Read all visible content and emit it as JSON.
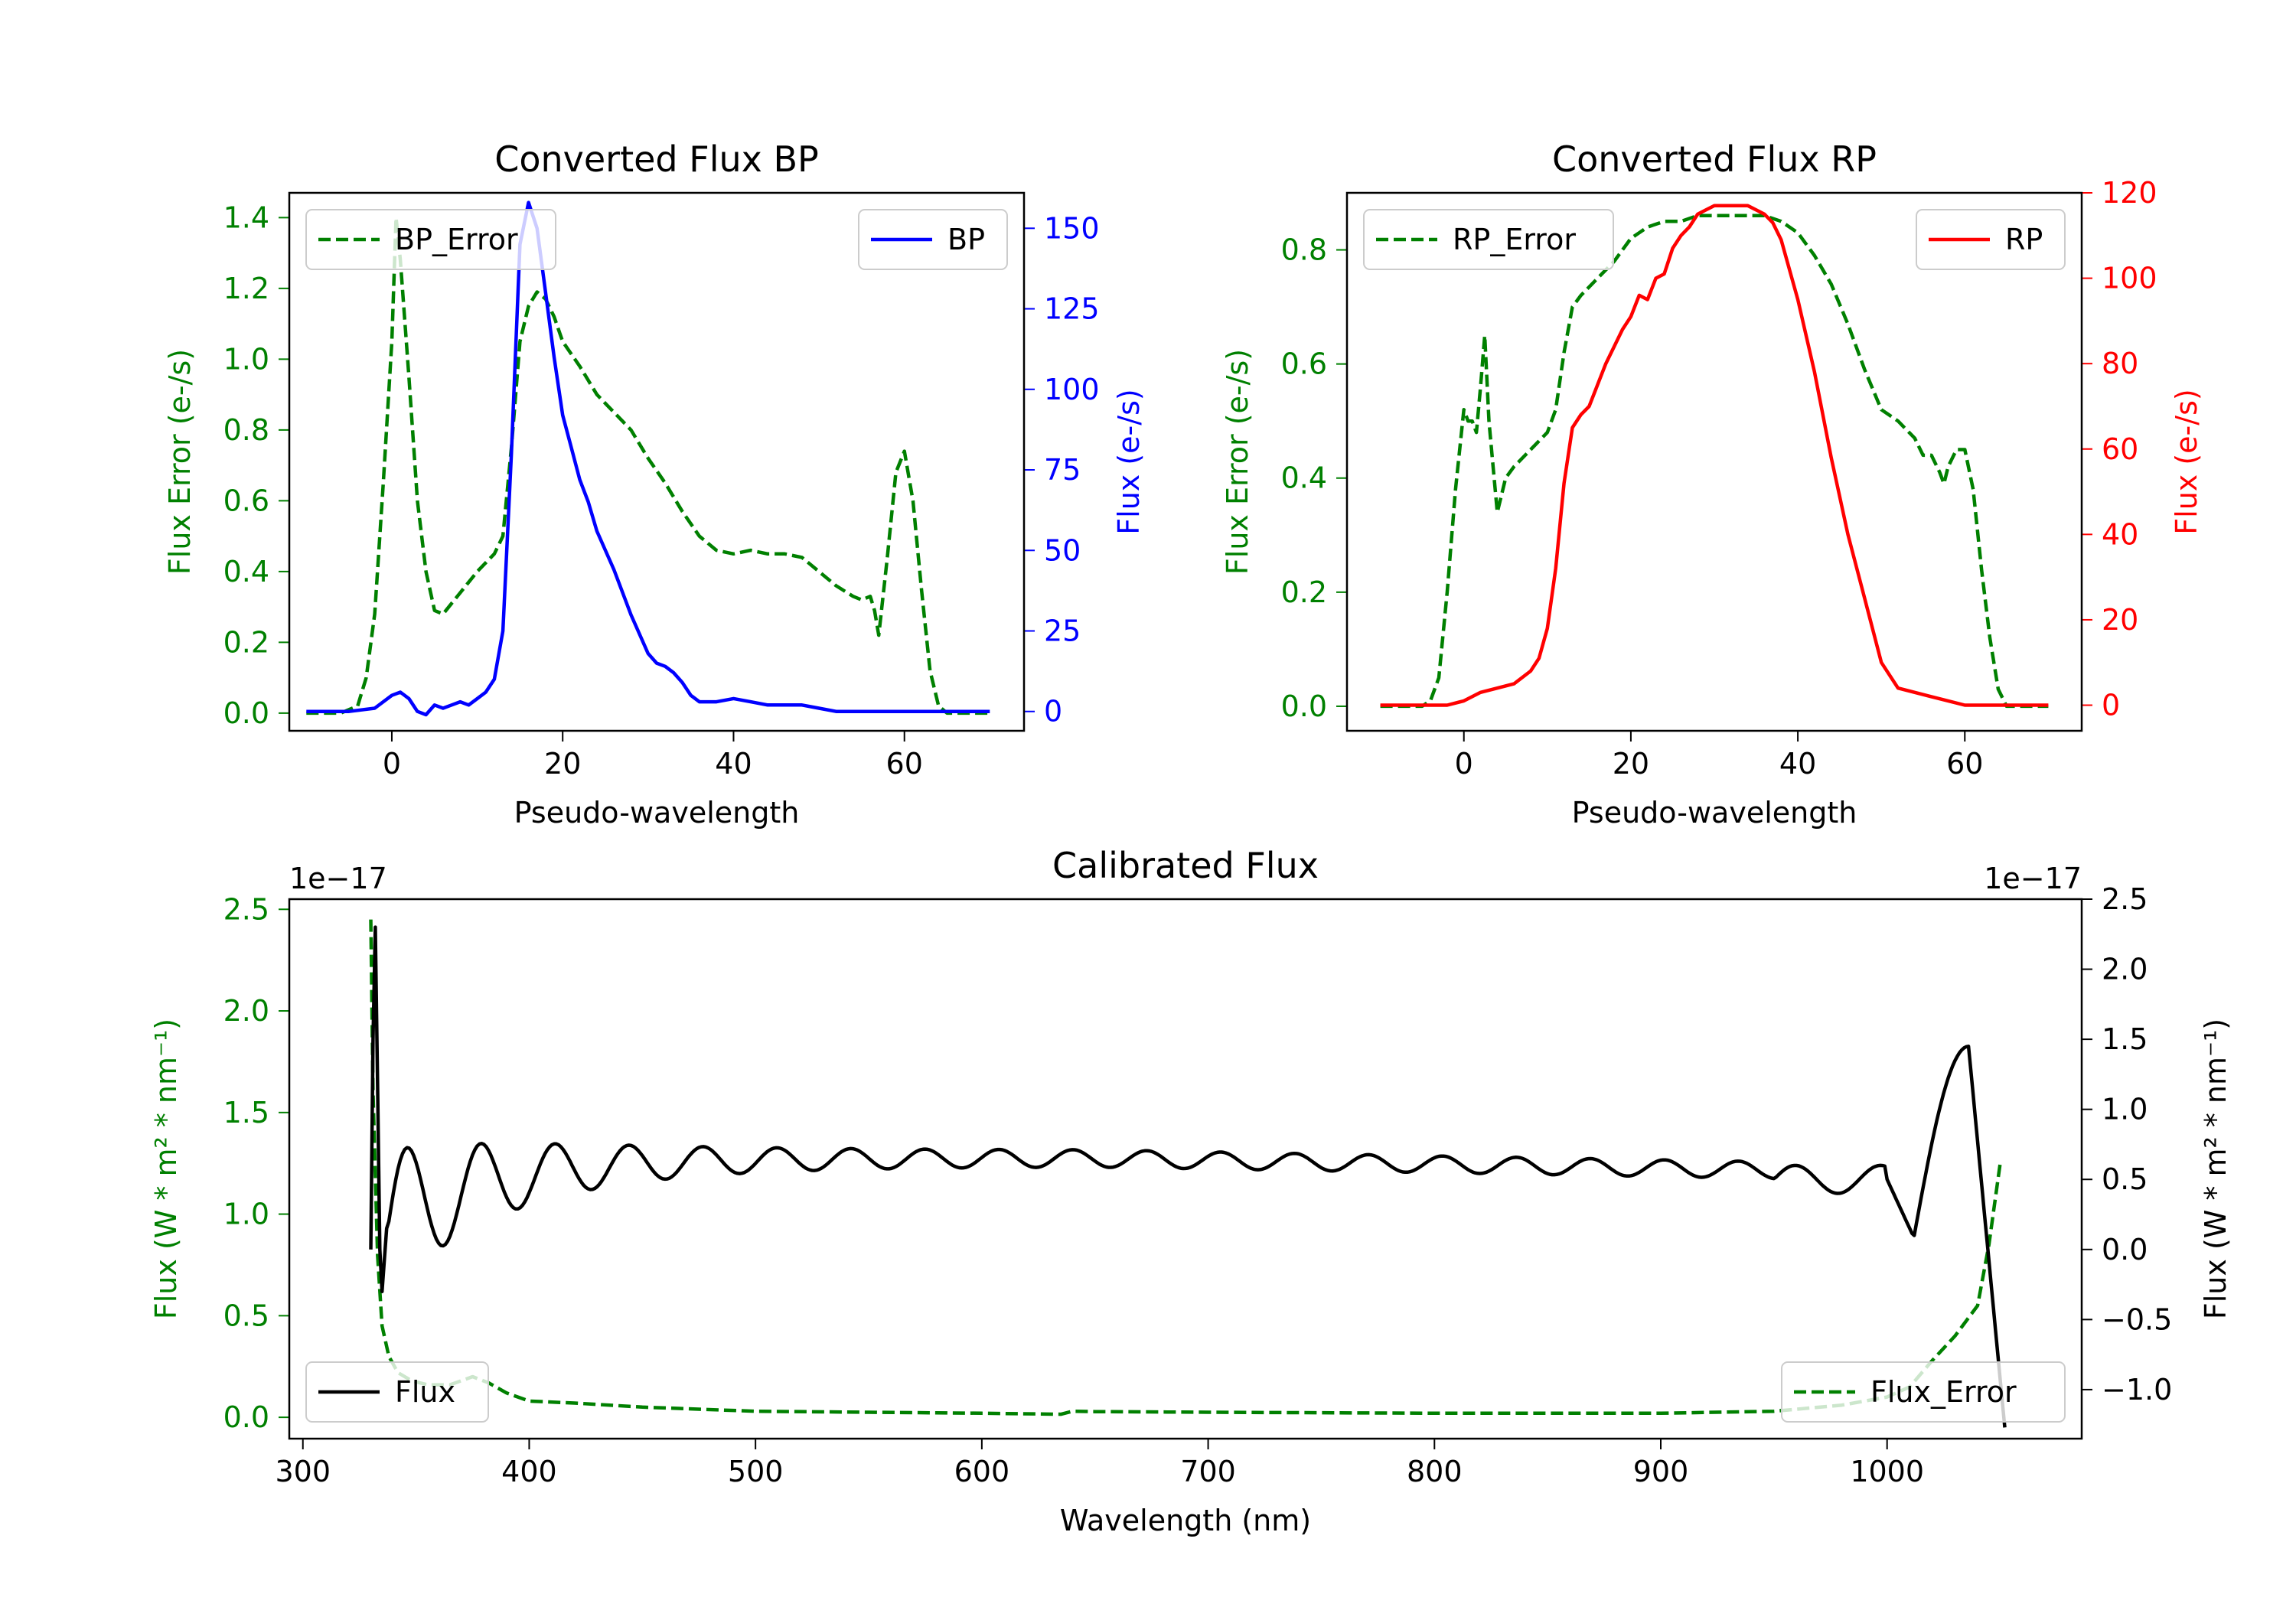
{
  "chart_data": [
    {
      "id": "bp",
      "type": "line",
      "title": "Converted Flux BP",
      "xlabel": "Pseudo-wavelength",
      "ylabel_left": "Flux Error (e-/s)",
      "ylabel_right": "Flux (e-/s)",
      "xlim": [
        -12,
        74
      ],
      "ylim_left": [
        -0.05,
        1.47
      ],
      "ylim_right": [
        -6,
        161
      ],
      "xticks": [
        0,
        20,
        40,
        60
      ],
      "yticks_left": [
        0.0,
        0.2,
        0.4,
        0.6,
        0.8,
        1.0,
        1.2,
        1.4
      ],
      "yticks_right": [
        0,
        25,
        50,
        75,
        100,
        125,
        150
      ],
      "ytick_labels_left": [
        "0.0",
        "0.2",
        "0.4",
        "0.6",
        "0.8",
        "1.0",
        "1.2",
        "1.4"
      ],
      "ytick_labels_right": [
        "0",
        "25",
        "50",
        "75",
        "100",
        "125",
        "150"
      ],
      "left_color": "#008000",
      "right_color": "#0000ff",
      "legend_left": {
        "label": "BP_Error",
        "placement": "upper-left"
      },
      "legend_right": {
        "label": "BP",
        "placement": "upper-right"
      },
      "series": [
        {
          "name": "BP_Error",
          "axis": "left",
          "color": "#008000",
          "style": "dashed",
          "x": [
            -10,
            -6,
            -4,
            -3,
            -2,
            -1,
            0,
            0.5,
            1,
            2,
            3,
            4,
            5,
            6,
            8,
            10,
            12,
            13,
            14,
            15,
            16,
            17,
            18,
            19,
            20,
            22,
            24,
            26,
            28,
            30,
            32,
            34,
            36,
            38,
            40,
            42,
            44,
            46,
            48,
            50,
            52,
            54,
            55,
            56,
            56.5,
            57,
            58,
            59,
            60,
            61,
            62,
            63,
            64,
            65,
            66,
            68,
            70
          ],
          "y": [
            0.0,
            0.0,
            0.02,
            0.1,
            0.28,
            0.65,
            1.05,
            1.4,
            1.28,
            0.95,
            0.6,
            0.4,
            0.29,
            0.28,
            0.34,
            0.4,
            0.45,
            0.5,
            0.75,
            1.05,
            1.15,
            1.19,
            1.17,
            1.12,
            1.05,
            0.98,
            0.9,
            0.85,
            0.8,
            0.72,
            0.65,
            0.57,
            0.5,
            0.46,
            0.45,
            0.46,
            0.45,
            0.45,
            0.44,
            0.4,
            0.36,
            0.33,
            0.32,
            0.33,
            0.29,
            0.22,
            0.44,
            0.68,
            0.74,
            0.6,
            0.35,
            0.12,
            0.02,
            0.0,
            0.0,
            0.0,
            0.0
          ]
        },
        {
          "name": "BP",
          "axis": "right",
          "color": "#0000ff",
          "style": "solid",
          "x": [
            -10,
            -5,
            -2,
            0,
            1,
            2,
            3,
            4,
            5,
            6,
            7,
            8,
            9,
            10,
            11,
            12,
            13,
            14,
            15,
            16,
            17,
            18,
            19,
            20,
            21,
            22,
            23,
            24,
            26,
            28,
            30,
            31,
            32,
            33,
            34,
            35,
            36,
            38,
            40,
            42,
            44,
            46,
            48,
            50,
            52,
            54,
            56,
            58,
            60,
            62,
            64,
            66,
            68,
            70
          ],
          "y": [
            0,
            0,
            1,
            5,
            6,
            4,
            0,
            -1,
            2,
            1,
            2,
            3,
            2,
            4,
            6,
            10,
            25,
            80,
            145,
            158,
            150,
            130,
            110,
            92,
            82,
            72,
            65,
            56,
            44,
            30,
            18,
            15,
            14,
            12,
            9,
            5,
            3,
            3,
            4,
            3,
            2,
            2,
            2,
            1,
            0,
            0,
            0,
            0,
            0,
            0,
            0,
            0,
            0,
            0
          ]
        }
      ]
    },
    {
      "id": "rp",
      "type": "line",
      "title": "Converted Flux RP",
      "xlabel": "Pseudo-wavelength",
      "ylabel_left": "Flux Error (e-/s)",
      "ylabel_right": "Flux (e-/s)",
      "xlim": [
        -14,
        74
      ],
      "ylim_left": [
        -0.043,
        0.9
      ],
      "ylim_right": [
        -6,
        120
      ],
      "xticks": [
        0,
        20,
        40,
        60
      ],
      "yticks_left": [
        0.0,
        0.2,
        0.4,
        0.6,
        0.8
      ],
      "yticks_right": [
        0,
        20,
        40,
        60,
        80,
        100,
        120
      ],
      "ytick_labels_left": [
        "0.0",
        "0.2",
        "0.4",
        "0.6",
        "0.8"
      ],
      "ytick_labels_right": [
        "0",
        "20",
        "40",
        "60",
        "80",
        "100",
        "120"
      ],
      "left_color": "#008000",
      "right_color": "#ff0000",
      "legend_left": {
        "label": "RP_Error",
        "placement": "upper-left"
      },
      "legend_right": {
        "label": "RP",
        "placement": "upper-right"
      },
      "series": [
        {
          "name": "RP_Error",
          "axis": "left",
          "color": "#008000",
          "style": "dashed",
          "x": [
            -10,
            -5,
            -4,
            -3,
            -2,
            -1,
            0,
            0.5,
            1,
            1.5,
            2,
            2.5,
            3,
            3.5,
            4,
            5,
            6,
            8,
            10,
            11,
            12,
            13,
            14,
            16,
            18,
            19,
            20,
            21,
            22,
            24,
            26,
            28,
            30,
            32,
            34,
            36,
            38,
            40,
            42,
            44,
            46,
            48,
            50,
            52,
            54,
            55,
            56,
            57,
            57.5,
            58,
            59,
            60,
            61,
            62,
            63,
            64,
            65,
            68,
            70
          ],
          "y": [
            0.0,
            0.0,
            0.01,
            0.05,
            0.2,
            0.38,
            0.52,
            0.5,
            0.5,
            0.48,
            0.56,
            0.65,
            0.5,
            0.42,
            0.34,
            0.4,
            0.42,
            0.45,
            0.48,
            0.52,
            0.62,
            0.7,
            0.72,
            0.75,
            0.78,
            0.8,
            0.82,
            0.83,
            0.84,
            0.85,
            0.85,
            0.86,
            0.86,
            0.86,
            0.86,
            0.86,
            0.85,
            0.83,
            0.79,
            0.74,
            0.67,
            0.59,
            0.52,
            0.5,
            0.47,
            0.44,
            0.44,
            0.41,
            0.39,
            0.42,
            0.45,
            0.45,
            0.38,
            0.24,
            0.12,
            0.03,
            0.0,
            0.0,
            0.0
          ]
        },
        {
          "name": "RP",
          "axis": "right",
          "color": "#ff0000",
          "style": "solid",
          "x": [
            -10,
            -5,
            -2,
            0,
            2,
            4,
            6,
            8,
            9,
            10,
            11,
            12,
            13,
            14,
            15,
            16,
            17,
            18,
            19,
            20,
            21,
            22,
            23,
            24,
            25,
            26,
            27,
            28,
            29,
            30,
            31,
            32,
            33,
            34,
            35,
            36,
            37,
            38,
            40,
            42,
            44,
            46,
            48,
            50,
            52,
            54,
            56,
            60,
            62,
            64,
            66,
            68,
            70
          ],
          "y": [
            0,
            0,
            0,
            1,
            3,
            4,
            5,
            8,
            11,
            18,
            32,
            52,
            65,
            68,
            70,
            75,
            80,
            84,
            88,
            91,
            96,
            95,
            100,
            101,
            107,
            110,
            112,
            115,
            116,
            117,
            117,
            117,
            117,
            117,
            116,
            115,
            113,
            109,
            95,
            78,
            58,
            40,
            25,
            10,
            4,
            3,
            2,
            0,
            0,
            0,
            0,
            0,
            0
          ]
        }
      ]
    },
    {
      "id": "calibrated",
      "type": "line",
      "title": "Calibrated Flux",
      "xlabel": "Wavelength (nm)",
      "ylabel_left": "Flux (W * m² * nm⁻¹)",
      "ylabel_right": "Flux (W * m² * nm⁻¹)",
      "offset_left": "1e−17",
      "offset_right": "1e−17",
      "xlim": [
        294,
        1086
      ],
      "ylim_left": [
        -0.105,
        2.55
      ],
      "ylim_right": [
        -1.35,
        2.5
      ],
      "xticks": [
        300,
        400,
        500,
        600,
        700,
        800,
        900,
        1000
      ],
      "yticks_left": [
        0.0,
        0.5,
        1.0,
        1.5,
        2.0,
        2.5
      ],
      "yticks_right": [
        -1.0,
        -0.5,
        0.0,
        0.5,
        1.0,
        1.5,
        2.0,
        2.5
      ],
      "ytick_labels_left": [
        "0.0",
        "0.5",
        "1.0",
        "1.5",
        "2.0",
        "2.5"
      ],
      "ytick_labels_right": [
        "−1.0",
        "−0.5",
        "0.0",
        "0.5",
        "1.0",
        "1.5",
        "2.0",
        "2.5"
      ],
      "left_color": "#008000",
      "right_color": "#000000",
      "legend_left": {
        "label": "Flux",
        "placement": "lower-left"
      },
      "legend_right": {
        "label": "Flux_Error",
        "placement": "lower-right"
      },
      "series": [
        {
          "name": "Flux_Error",
          "axis": "left",
          "color": "#008000",
          "style": "dashed",
          "x": [
            330,
            331,
            333,
            335,
            338,
            342,
            348,
            355,
            365,
            375,
            382,
            390,
            400,
            420,
            450,
            500,
            550,
            600,
            635,
            640,
            650,
            700,
            800,
            900,
            950,
            980,
            1000,
            1010,
            1020,
            1030,
            1040,
            1045,
            1050
          ],
          "y": [
            2.45,
            1.6,
            0.8,
            0.45,
            0.3,
            0.22,
            0.18,
            0.16,
            0.16,
            0.2,
            0.17,
            0.12,
            0.08,
            0.07,
            0.05,
            0.03,
            0.025,
            0.02,
            0.015,
            0.03,
            0.028,
            0.025,
            0.02,
            0.02,
            0.03,
            0.06,
            0.1,
            0.15,
            0.28,
            0.4,
            0.55,
            0.85,
            1.25
          ]
        }
      ]
    }
  ]
}
